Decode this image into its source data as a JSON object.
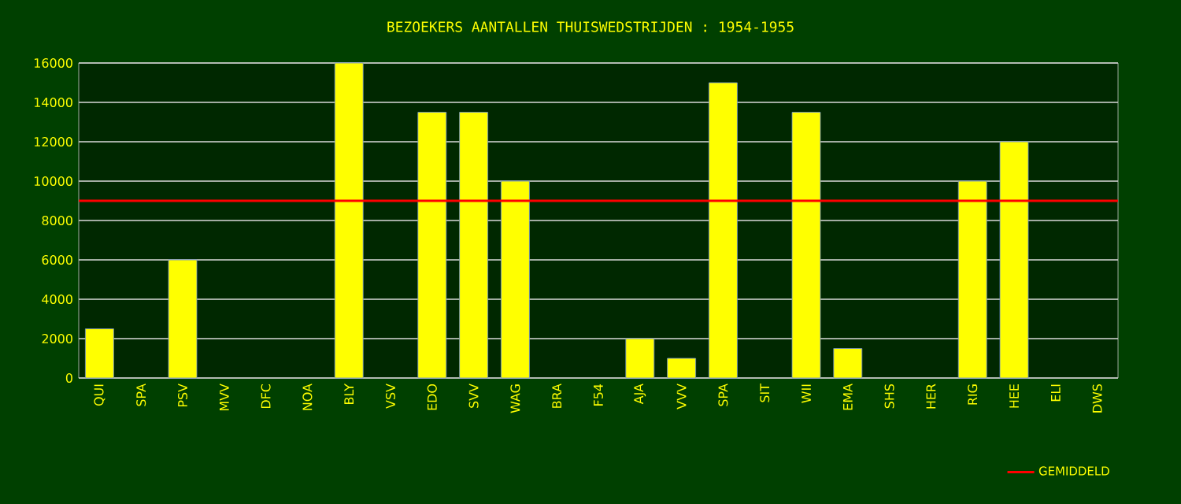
{
  "chart_data": {
    "type": "bar",
    "title": "BEZOEKERS AANTALLEN THUISWEDSTRIJDEN : 1954-1955",
    "categories": [
      "QUI",
      "SPA",
      "PSV",
      "MVV",
      "DFC",
      "NOA",
      "BLY",
      "VSV",
      "EDO",
      "SVV",
      "WAG",
      "BRA",
      "F54",
      "AJA",
      "VVV",
      "SPA",
      "SIT",
      "WII",
      "EMA",
      "SHS",
      "HER",
      "RIG",
      "HEE",
      "ELI",
      "DWS"
    ],
    "values": [
      2500,
      null,
      6000,
      null,
      null,
      null,
      16000,
      null,
      13500,
      13500,
      10000,
      null,
      null,
      2000,
      1000,
      15000,
      null,
      13500,
      1500,
      null,
      null,
      10000,
      12000,
      null,
      null
    ],
    "color": "#ffff00",
    "ylim": [
      0,
      16000
    ],
    "yticks": [
      0,
      2000,
      4000,
      6000,
      8000,
      10000,
      12000,
      14000,
      16000
    ],
    "grid": "y",
    "legend": "bottom right",
    "ref_lines": [
      {
        "axis": "y",
        "value": 9000,
        "label": "GEMIDDELD",
        "color": "#ff0000"
      }
    ]
  }
}
